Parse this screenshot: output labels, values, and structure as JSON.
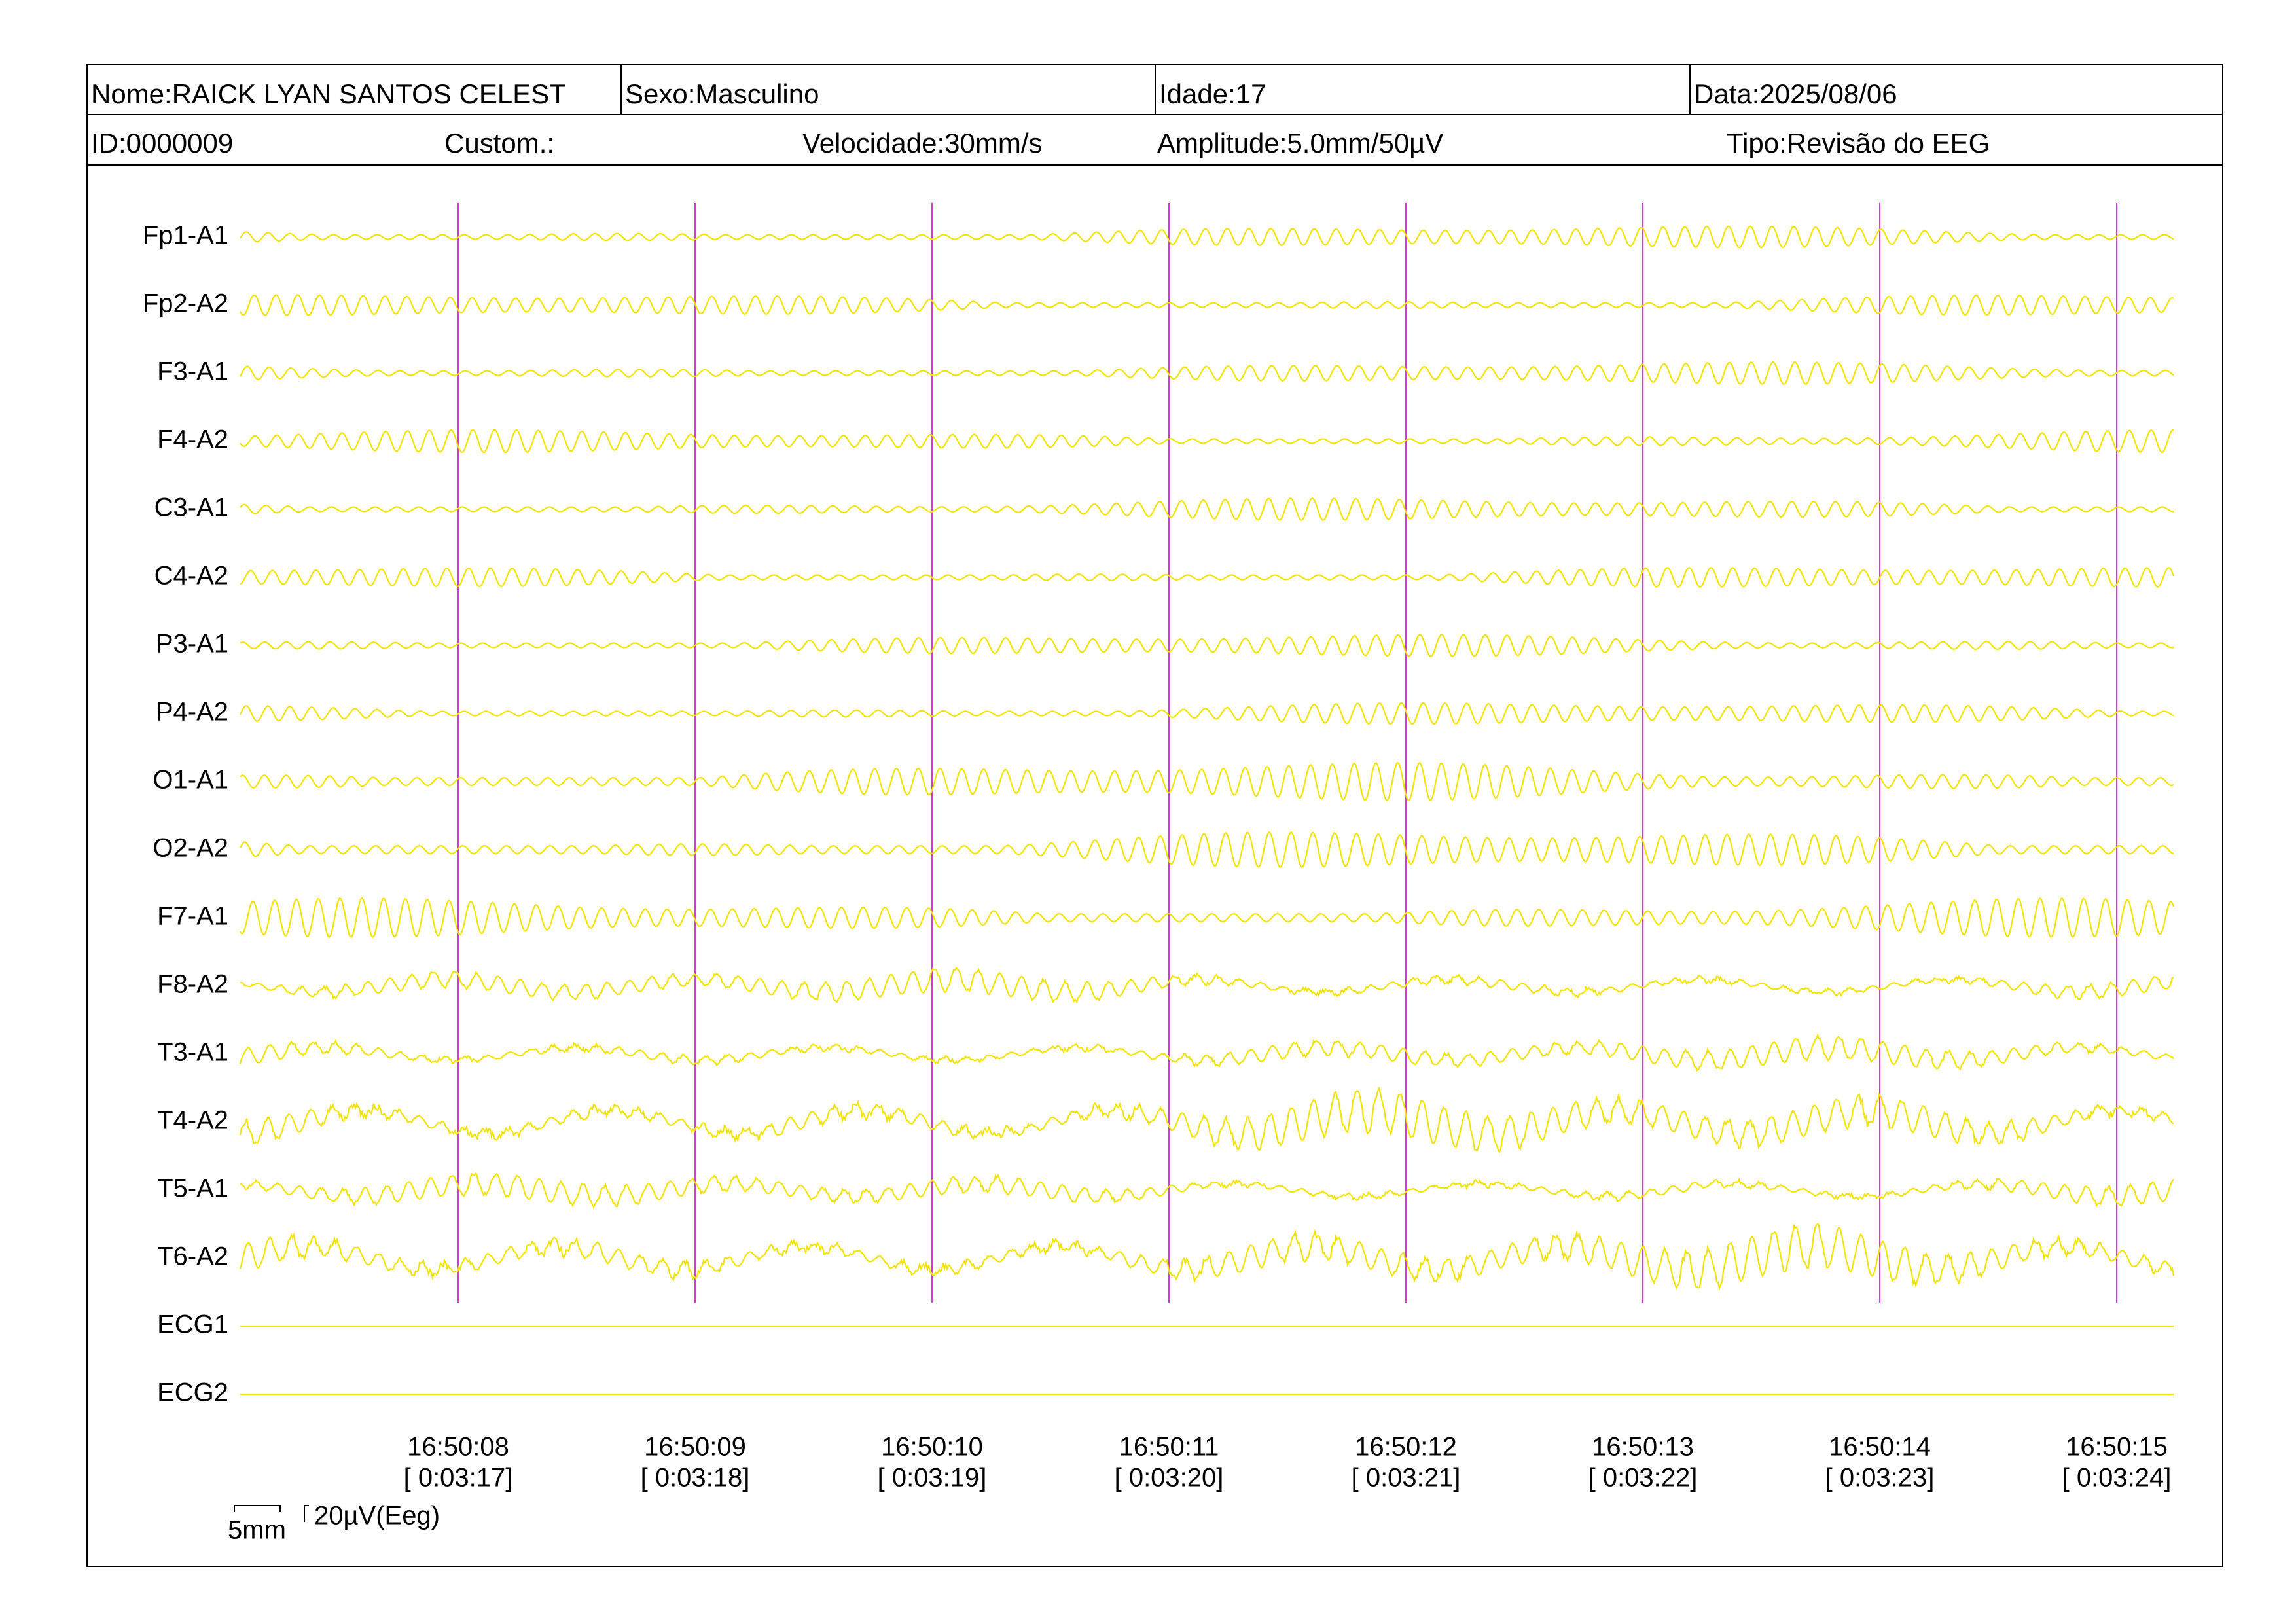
{
  "header": {
    "row1": [
      "Nome:RAICK LYAN SANTOS CELEST",
      "Sexo:Masculino",
      "Idade:17",
      "Data:2025/08/06"
    ],
    "row2": [
      "ID:0000009",
      "Custom.:",
      "Velocidade:30mm/s",
      "Amplitude:5.0mm/50µV",
      "Tipo:Revisão do EEG"
    ]
  },
  "channels": [
    "Fp1-A1",
    "Fp2-A2",
    "F3-A1",
    "F4-A2",
    "C3-A1",
    "C4-A2",
    "P3-A1",
    "P4-A2",
    "O1-A1",
    "O2-A2",
    "F7-A1",
    "F8-A2",
    "T3-A1",
    "T4-A2",
    "T5-A1",
    "T6-A2",
    "ECG1",
    "ECG2"
  ],
  "time_marks": [
    {
      "clock": "16:50:08",
      "elapsed": "[ 0:03:17]"
    },
    {
      "clock": "16:50:09",
      "elapsed": "[ 0:03:18]"
    },
    {
      "clock": "16:50:10",
      "elapsed": "[ 0:03:19]"
    },
    {
      "clock": "16:50:11",
      "elapsed": "[ 0:03:20]"
    },
    {
      "clock": "16:50:12",
      "elapsed": "[ 0:03:21]"
    },
    {
      "clock": "16:50:13",
      "elapsed": "[ 0:03:22]"
    },
    {
      "clock": "16:50:14",
      "elapsed": "[ 0:03:23]"
    },
    {
      "clock": "16:50:15",
      "elapsed": "[ 0:03:24]"
    }
  ],
  "scale": {
    "time": "5mm",
    "amplitude": "20µV(Eeg)"
  }
}
